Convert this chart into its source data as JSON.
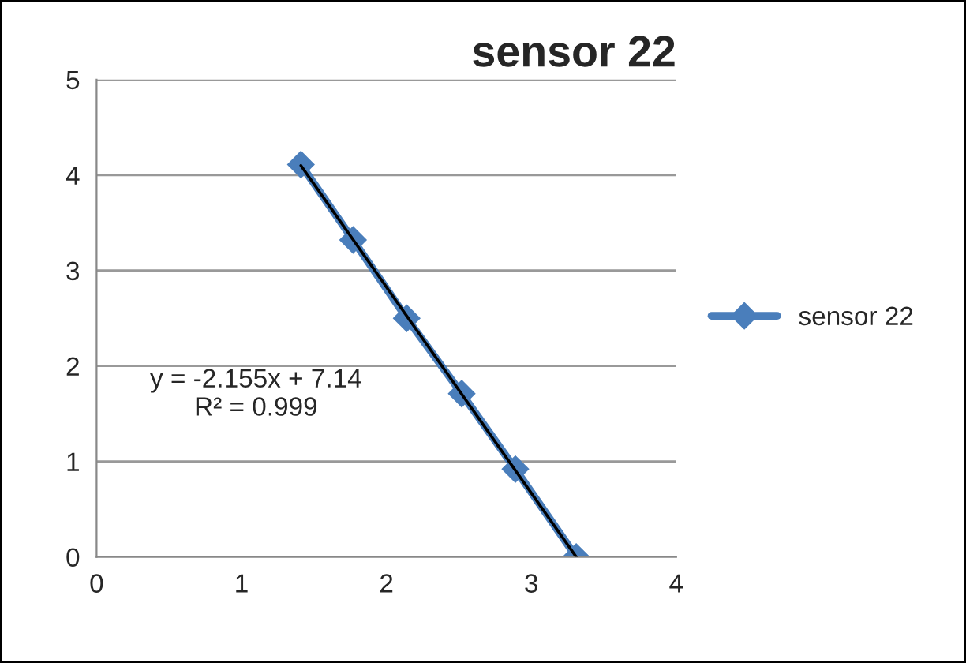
{
  "chart_data": {
    "type": "line",
    "title": "sensor 22",
    "series": [
      {
        "name": "sensor 22",
        "color": "#4a7ebb",
        "x": [
          1.41,
          1.77,
          2.14,
          2.52,
          2.89,
          3.31
        ],
        "values": [
          4.11,
          3.32,
          2.5,
          1.71,
          0.92,
          0.0
        ],
        "marker": "diamond"
      },
      {
        "color": "#000000",
        "type": "line",
        "x": [
          1.41,
          3.31
        ],
        "values": [
          4.1,
          0.0
        ],
        "marker": "none"
      }
    ],
    "xlim": [
      0,
      4
    ],
    "xticks": [
      0,
      1,
      2,
      3,
      4
    ],
    "ylim": [
      0,
      5
    ],
    "yticks": [
      0,
      1,
      2,
      3,
      4,
      5
    ],
    "grid": "y",
    "legend": "right",
    "annotations": [
      "y = -2.155x + 7.14\nR² = 0.999"
    ]
  }
}
